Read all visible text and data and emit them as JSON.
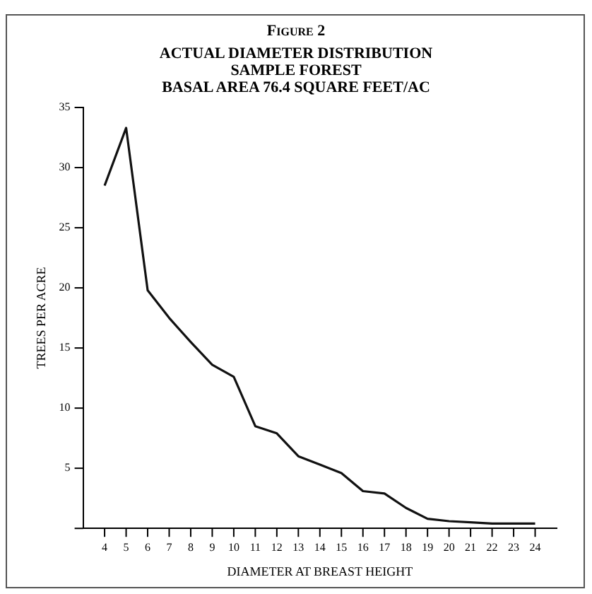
{
  "chart_data": {
    "type": "line",
    "title": "Figure 2",
    "subtitle": "ACTUAL DIAMETER DISTRIBUTION\nSAMPLE FOREST\nBASAL AREA 76.4 SQUARE FEET/AC",
    "xlabel": "DIAMETER AT BREAST HEIGHT",
    "ylabel": "TREES PER ACRE",
    "x": [
      4,
      5,
      6,
      7,
      8,
      9,
      10,
      11,
      12,
      13,
      14,
      15,
      16,
      17,
      18,
      19,
      20,
      21,
      22,
      23,
      24
    ],
    "series": [
      {
        "color": "#111111",
        "values": [
          28.5,
          33.3,
          19.8,
          17.5,
          15.5,
          13.6,
          12.6,
          8.5,
          7.9,
          6.0,
          5.3,
          4.6,
          3.1,
          2.9,
          1.7,
          0.8,
          0.6,
          0.5,
          0.4,
          0.4,
          0.4
        ]
      }
    ],
    "xlim": [
      3,
      25
    ],
    "xticks": [
      4,
      5,
      6,
      7,
      8,
      9,
      10,
      11,
      12,
      13,
      14,
      15,
      16,
      17,
      18,
      19,
      20,
      21,
      22,
      23,
      24
    ],
    "ylim": [
      0,
      35
    ],
    "yticks": [
      {
        "value": 0,
        "label": null
      },
      5,
      10,
      15,
      20,
      25,
      30,
      35
    ],
    "grid": false,
    "legend": false,
    "marker": "none",
    "line_style": "solid"
  }
}
